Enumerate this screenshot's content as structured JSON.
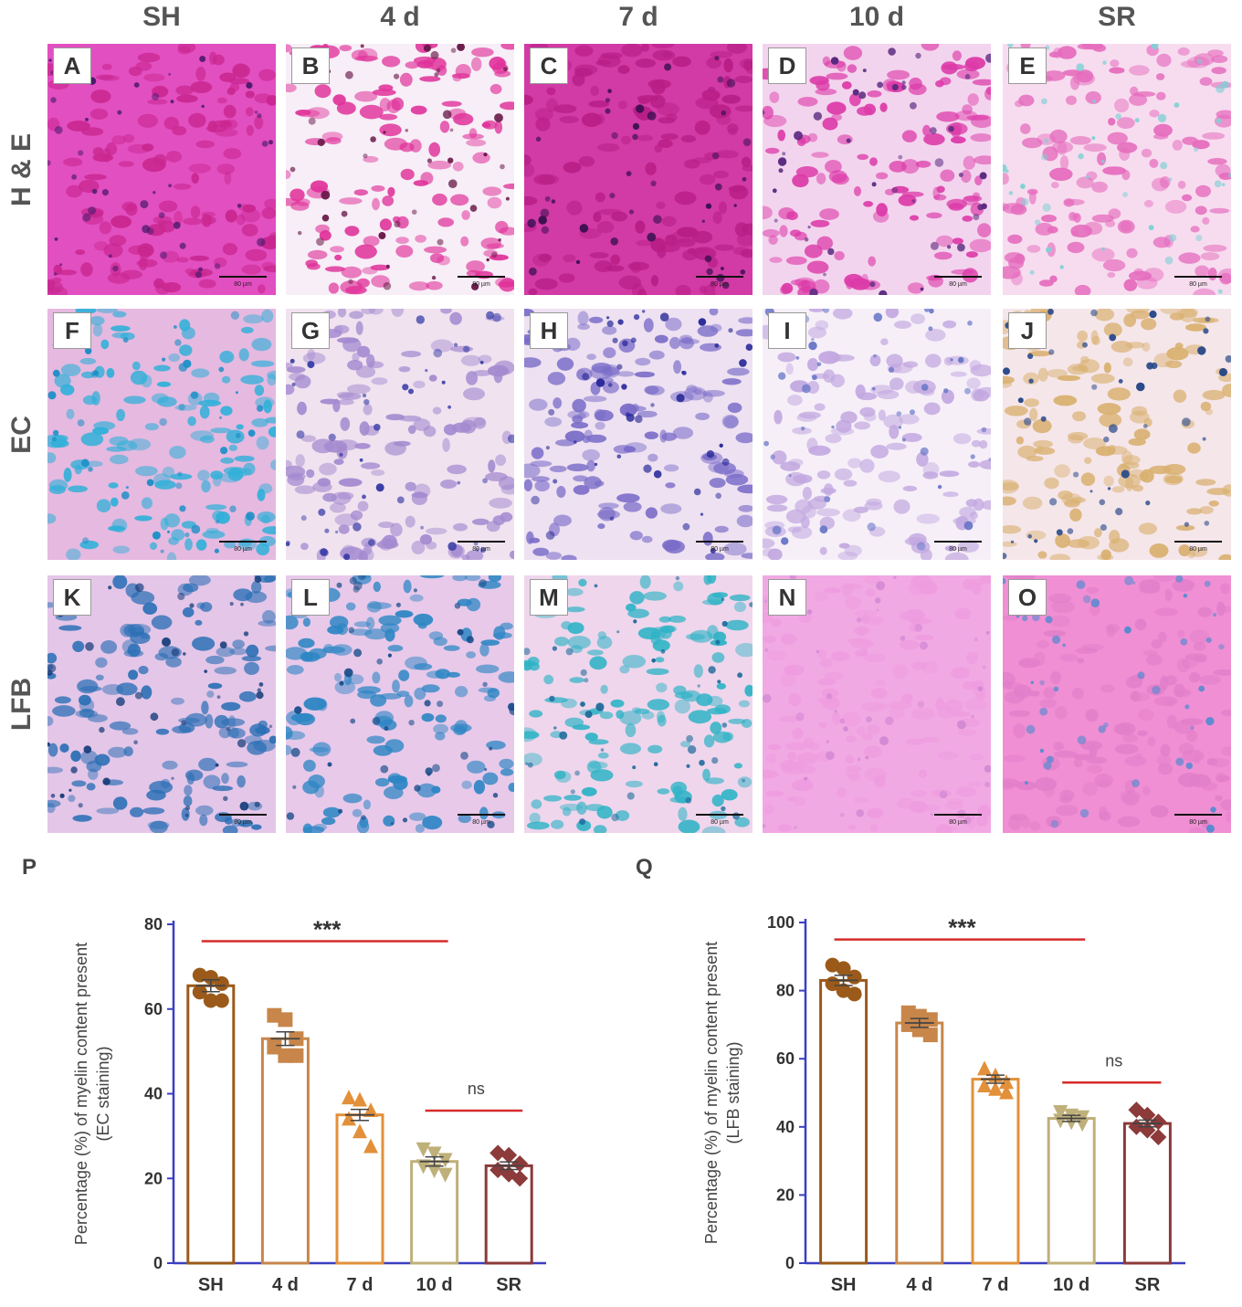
{
  "figure": {
    "columns": [
      "SH",
      "4 d",
      "7 d",
      "10 d",
      "SR"
    ],
    "rows": [
      "H & E",
      "EC",
      "LFB"
    ],
    "panels": [
      {
        "label": "A",
        "scale": "80 µm",
        "bg": "#e24fc0",
        "cell": "#c9268f",
        "nucleus": "#4a1a6e"
      },
      {
        "label": "B",
        "scale": "80 µm",
        "bg": "#f7eef7",
        "cell": "#e0329a",
        "nucleus": "#6a1a4a"
      },
      {
        "label": "C",
        "scale": "80 µm",
        "bg": "#d23aa6",
        "cell": "#b81e86",
        "nucleus": "#3a1050"
      },
      {
        "label": "D",
        "scale": "80 µm",
        "bg": "#f3d4ee",
        "cell": "#dc3aa8",
        "nucleus": "#5a2a80"
      },
      {
        "label": "E",
        "scale": "80 µm",
        "bg": "#f7dcef",
        "cell": "#e56bbd",
        "nucleus": "#7fd0d4"
      },
      {
        "label": "F",
        "scale": "80 µm",
        "bg": "#e6b9e0",
        "cell": "#2fb0d8",
        "nucleus": "#1d8fc7"
      },
      {
        "label": "G",
        "scale": "80 µm",
        "bg": "#f0e2ef",
        "cell": "#a48ad0",
        "nucleus": "#3b3fa8"
      },
      {
        "label": "H",
        "scale": "80 µm",
        "bg": "#eee1f1",
        "cell": "#7a6cc8",
        "nucleus": "#2a2b9a"
      },
      {
        "label": "I",
        "scale": "80 µm",
        "bg": "#f6eff8",
        "cell": "#c2a8e0",
        "nucleus": "#6a78c8"
      },
      {
        "label": "J",
        "scale": "80 µm",
        "bg": "#f5e6ea",
        "cell": "#d9b070",
        "nucleus": "#2a4a8a"
      },
      {
        "label": "K",
        "scale": "80 µm",
        "bg": "#e4c6e8",
        "cell": "#2a6fb5",
        "nucleus": "#163d7a"
      },
      {
        "label": "L",
        "scale": "80 µm",
        "bg": "#e8c9ea",
        "cell": "#2d86c4",
        "nucleus": "#1a4d8a"
      },
      {
        "label": "M",
        "scale": "80 µm",
        "bg": "#efd6ec",
        "cell": "#2fb3c6",
        "nucleus": "#1d6a9a"
      },
      {
        "label": "N",
        "scale": "80 µm",
        "bg": "#f1a9e3",
        "cell": "#ee9cdf",
        "nucleus": "#d48ad4"
      },
      {
        "label": "O",
        "scale": "80 µm",
        "bg": "#f08fd4",
        "cell": "#e27fca",
        "nucleus": "#5a8ad0"
      }
    ]
  },
  "chart_data": [
    {
      "panel_label": "P",
      "type": "bar",
      "ylabel_line1": "Percentage (%) of myelin content present",
      "ylabel_line2": "(EC staining)",
      "categories": [
        "SH",
        "4 d",
        "7 d",
        "10 d",
        "SR"
      ],
      "values": [
        65.5,
        53,
        35,
        24,
        23
      ],
      "errors": [
        1.4,
        1.6,
        1.3,
        1.1,
        0.9
      ],
      "points": [
        [
          68,
          67.5,
          66,
          64,
          62,
          62
        ],
        [
          58.5,
          57.5,
          53,
          51,
          49,
          49
        ],
        [
          39,
          38.5,
          36,
          34,
          31,
          27.5
        ],
        [
          27,
          26,
          24.5,
          23,
          22,
          21
        ],
        [
          26,
          25.5,
          23.5,
          22,
          21,
          20
        ]
      ],
      "markers": [
        "circle",
        "square",
        "triangle-up",
        "triangle-down",
        "diamond"
      ],
      "colors": [
        "#9b5a1a",
        "#c8864a",
        "#e3903a",
        "#bfb07a",
        "#8c3a3a"
      ],
      "ylim": [
        0,
        80
      ],
      "yticks": [
        0,
        20,
        40,
        60,
        80
      ],
      "significance": [
        {
          "from": 0,
          "to": 3,
          "text": "***",
          "level": 76
        },
        {
          "from": 3,
          "to": 4,
          "text": "ns",
          "level": 36
        }
      ]
    },
    {
      "panel_label": "Q",
      "type": "bar",
      "ylabel_line1": "Percentage (%) of myelin content present",
      "ylabel_line2": "(LFB staining)",
      "categories": [
        "SH",
        "4 d",
        "7 d",
        "10 d",
        "SR"
      ],
      "values": [
        83,
        70.5,
        54,
        42.5,
        41
      ],
      "errors": [
        1.5,
        1.3,
        1.2,
        0.9,
        1.0
      ],
      "points": [
        [
          87.5,
          86.5,
          84,
          82,
          80,
          79
        ],
        [
          73.5,
          72.5,
          71.5,
          70,
          68.5,
          67
        ],
        [
          57,
          55,
          53,
          52,
          51,
          50
        ],
        [
          44.5,
          43.5,
          43,
          42,
          41.5,
          41
        ],
        [
          45,
          43.5,
          41.5,
          40,
          39,
          37
        ]
      ],
      "markers": [
        "circle",
        "square",
        "triangle-up",
        "triangle-down",
        "diamond"
      ],
      "colors": [
        "#9b5a1a",
        "#c8864a",
        "#e3903a",
        "#bfb07a",
        "#8c3a3a"
      ],
      "ylim": [
        0,
        100
      ],
      "yticks": [
        0,
        20,
        40,
        60,
        80,
        100
      ],
      "significance": [
        {
          "from": 0,
          "to": 3,
          "text": "***",
          "level": 95
        },
        {
          "from": 3,
          "to": 4,
          "text": "ns",
          "level": 53
        }
      ]
    }
  ]
}
